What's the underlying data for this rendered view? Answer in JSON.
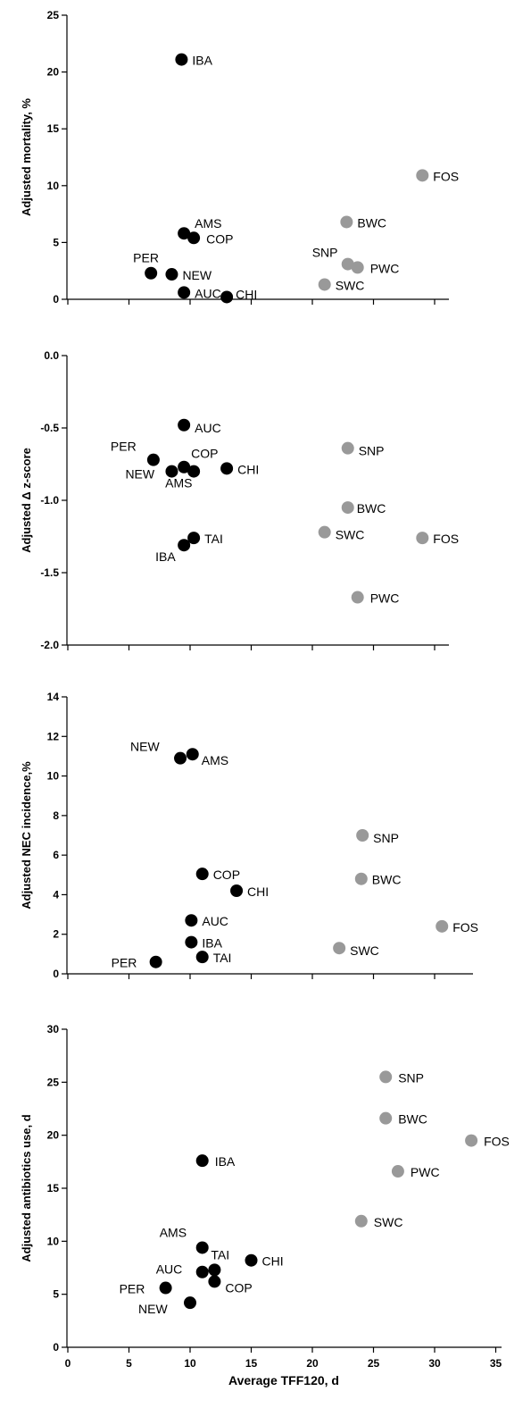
{
  "colors": {
    "group_a": "#000000",
    "group_b": "#999999"
  },
  "chart_data": [
    {
      "type": "scatter",
      "ylabel": "Adjusted mortality, %",
      "ylim": [
        0,
        25
      ],
      "yticks": [
        "0",
        "5",
        "10",
        "15",
        "20",
        "25"
      ],
      "xlim": [
        0,
        35
      ],
      "points": [
        {
          "label": "IBA",
          "x": 9.3,
          "y": 21.1,
          "group": "a"
        },
        {
          "label": "AMS",
          "x": 9.5,
          "y": 5.8,
          "group": "a"
        },
        {
          "label": "COP",
          "x": 10.3,
          "y": 5.4,
          "group": "a"
        },
        {
          "label": "PER",
          "x": 6.8,
          "y": 2.3,
          "group": "a"
        },
        {
          "label": "NEW",
          "x": 8.5,
          "y": 2.2,
          "group": "a"
        },
        {
          "label": "AUC",
          "x": 9.5,
          "y": 0.6,
          "group": "a"
        },
        {
          "label": "CHI",
          "x": 13.0,
          "y": 0.2,
          "group": "a"
        },
        {
          "label": "FOS",
          "x": 29.0,
          "y": 10.9,
          "group": "b"
        },
        {
          "label": "BWC",
          "x": 22.8,
          "y": 6.8,
          "group": "b"
        },
        {
          "label": "SNP",
          "x": 22.9,
          "y": 3.1,
          "group": "b"
        },
        {
          "label": "PWC",
          "x": 23.7,
          "y": 2.8,
          "group": "b"
        },
        {
          "label": "SWC",
          "x": 21.0,
          "y": 1.3,
          "group": "b"
        }
      ]
    },
    {
      "type": "scatter",
      "ylabel": "Adjusted Δ z-score",
      "ylim": [
        -2.0,
        0.0
      ],
      "yticks": [
        "-2.0",
        "-1.5",
        "-1.0",
        "-0.5",
        "0.0"
      ],
      "xlim": [
        0,
        35
      ],
      "points": [
        {
          "label": "AUC",
          "x": 9.5,
          "y": -0.48,
          "group": "a"
        },
        {
          "label": "PER",
          "x": 7.0,
          "y": -0.72,
          "group": "a"
        },
        {
          "label": "COP",
          "x": 9.5,
          "y": -0.77,
          "group": "a"
        },
        {
          "label": "NEW",
          "x": 8.5,
          "y": -0.8,
          "group": "a"
        },
        {
          "label": "AMS",
          "x": 10.3,
          "y": -0.8,
          "group": "a"
        },
        {
          "label": "CHI",
          "x": 13.0,
          "y": -0.78,
          "group": "a"
        },
        {
          "label": "TAI",
          "x": 10.3,
          "y": -1.26,
          "group": "a"
        },
        {
          "label": "IBA",
          "x": 9.5,
          "y": -1.31,
          "group": "a"
        },
        {
          "label": "SNP",
          "x": 22.9,
          "y": -0.64,
          "group": "b"
        },
        {
          "label": "BWC",
          "x": 22.9,
          "y": -1.05,
          "group": "b"
        },
        {
          "label": "SWC",
          "x": 21.0,
          "y": -1.22,
          "group": "b"
        },
        {
          "label": "FOS",
          "x": 29.0,
          "y": -1.26,
          "group": "b"
        },
        {
          "label": "PWC",
          "x": 23.7,
          "y": -1.67,
          "group": "b"
        }
      ]
    },
    {
      "type": "scatter",
      "ylabel": "Adjusted NEC incidence,%",
      "ylim": [
        0,
        14
      ],
      "yticks": [
        "0",
        "2",
        "4",
        "6",
        "8",
        "10",
        "12",
        "14"
      ],
      "xlim": [
        0,
        35
      ],
      "points": [
        {
          "label": "NEW",
          "x": 9.2,
          "y": 10.9,
          "group": "a"
        },
        {
          "label": "AMS",
          "x": 10.2,
          "y": 11.1,
          "group": "a"
        },
        {
          "label": "COP",
          "x": 11.0,
          "y": 5.05,
          "group": "a"
        },
        {
          "label": "CHI",
          "x": 13.8,
          "y": 4.2,
          "group": "a"
        },
        {
          "label": "AUC",
          "x": 10.1,
          "y": 2.7,
          "group": "a"
        },
        {
          "label": "IBA",
          "x": 10.1,
          "y": 1.6,
          "group": "a"
        },
        {
          "label": "TAI",
          "x": 11.0,
          "y": 0.85,
          "group": "a"
        },
        {
          "label": "PER",
          "x": 7.2,
          "y": 0.6,
          "group": "a"
        },
        {
          "label": "SNP",
          "x": 24.1,
          "y": 7.0,
          "group": "b"
        },
        {
          "label": "BWC",
          "x": 24.0,
          "y": 4.8,
          "group": "b"
        },
        {
          "label": "FOS",
          "x": 30.6,
          "y": 2.4,
          "group": "b"
        },
        {
          "label": "SWC",
          "x": 22.2,
          "y": 1.3,
          "group": "b"
        }
      ]
    },
    {
      "type": "scatter",
      "ylabel": "Adjusted antibiotics use, d",
      "xlabel": "Average TFF120, d",
      "ylim": [
        0,
        30
      ],
      "yticks": [
        "0",
        "5",
        "10",
        "15",
        "20",
        "25",
        "30"
      ],
      "xlim": [
        0,
        35
      ],
      "xticks": [
        "0",
        "5",
        "10",
        "15",
        "20",
        "25",
        "30",
        "35"
      ],
      "points": [
        {
          "label": "IBA",
          "x": 11.0,
          "y": 17.6,
          "group": "a"
        },
        {
          "label": "AMS",
          "x": 11.0,
          "y": 9.4,
          "group": "a"
        },
        {
          "label": "TAI",
          "x": 12.0,
          "y": 7.3,
          "group": "a"
        },
        {
          "label": "AUC",
          "x": 11.0,
          "y": 7.1,
          "group": "a"
        },
        {
          "label": "CHI",
          "x": 15.0,
          "y": 8.2,
          "group": "a"
        },
        {
          "label": "COP",
          "x": 12.0,
          "y": 6.2,
          "group": "a"
        },
        {
          "label": "PER",
          "x": 8.0,
          "y": 5.6,
          "group": "a"
        },
        {
          "label": "NEW",
          "x": 10.0,
          "y": 4.2,
          "group": "a"
        },
        {
          "label": "SNP",
          "x": 26.0,
          "y": 25.5,
          "group": "b"
        },
        {
          "label": "BWC",
          "x": 26.0,
          "y": 21.6,
          "group": "b"
        },
        {
          "label": "FOS",
          "x": 33.0,
          "y": 19.5,
          "group": "b"
        },
        {
          "label": "PWC",
          "x": 27.0,
          "y": 16.6,
          "group": "b"
        },
        {
          "label": "SWC",
          "x": 24.0,
          "y": 11.9,
          "group": "b"
        }
      ]
    }
  ]
}
